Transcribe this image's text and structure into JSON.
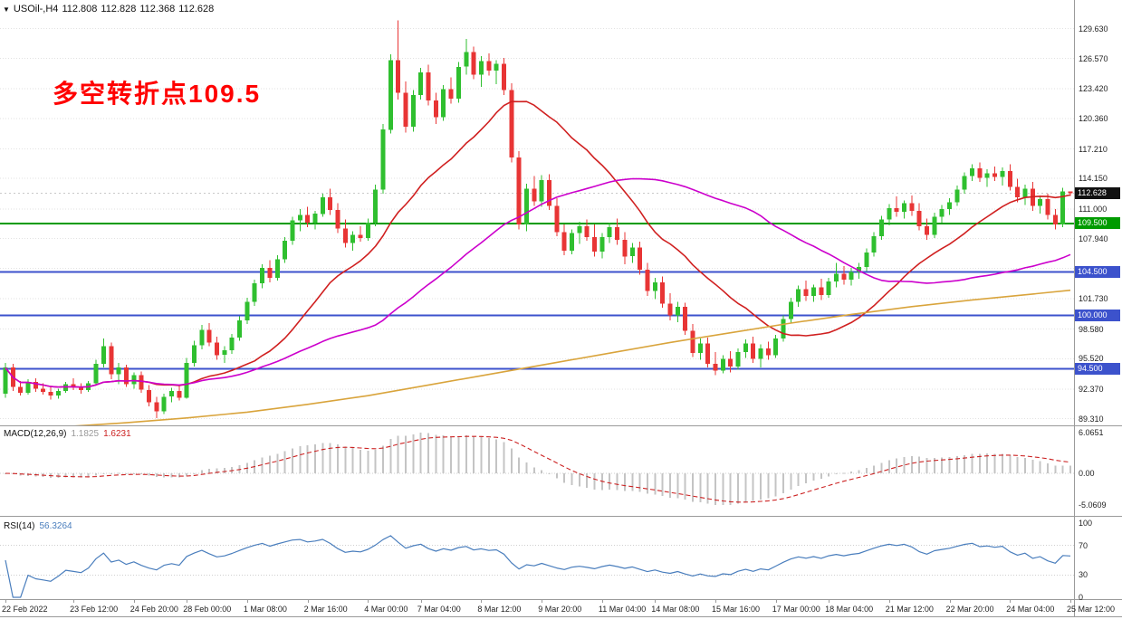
{
  "header": {
    "symbol_period": "USOil-,H4",
    "open": "112.808",
    "high": "112.828",
    "low": "112.368",
    "close": "112.628"
  },
  "annotation": {
    "text": "多空转折点109.5",
    "color": "#ff0000"
  },
  "colors": {
    "background": "#ffffff",
    "up": "#2fbf2f",
    "down": "#e83535",
    "grid": "#e2e2e2",
    "separator": "#9a9a9a",
    "tag_current_bg": "#111111",
    "macd_hist": "#c4c4c4",
    "macd_signal": "#cc2222",
    "rsi_line": "#4a7ebd"
  },
  "chart_data": {
    "type": "candlestick",
    "symbol": "USOil",
    "timeframe": "H4",
    "price_axis": {
      "view_max": 132.6,
      "view_min": 88.63,
      "ticks": [
        {
          "v": 129.63,
          "label": "129.630"
        },
        {
          "v": 126.57,
          "label": "126.570"
        },
        {
          "v": 123.42,
          "label": "123.420"
        },
        {
          "v": 120.36,
          "label": "120.360"
        },
        {
          "v": 117.21,
          "label": "117.210"
        },
        {
          "v": 114.15,
          "label": "114.150"
        },
        {
          "v": 111.0,
          "label": "111.000"
        },
        {
          "v": 107.94,
          "label": "107.940"
        },
        {
          "v": 101.73,
          "label": "101.730"
        },
        {
          "v": 98.58,
          "label": "98.580"
        },
        {
          "v": 95.52,
          "label": "95.520"
        },
        {
          "v": 92.37,
          "label": "92.370"
        },
        {
          "v": 89.31,
          "label": "89.310"
        }
      ],
      "grid_extra": [
        104.88
      ]
    },
    "current_price": {
      "value": 112.628,
      "label": "112.628"
    },
    "hlines": [
      {
        "price": 109.5,
        "label": "109.500",
        "color": "#009b00"
      },
      {
        "price": 104.5,
        "label": "104.500",
        "color": "#3c52cc"
      },
      {
        "price": 100.0,
        "label": "100.000",
        "color": "#3c52cc"
      },
      {
        "price": 94.5,
        "label": "94.500",
        "color": "#3c52cc"
      }
    ],
    "moving_averages": [
      {
        "name": "fast",
        "method": "sma",
        "period": 20,
        "color": "#d02020"
      },
      {
        "name": "medium",
        "method": "sma",
        "period": 50,
        "color": "#cc00cc"
      }
    ],
    "slow_ma_points": {
      "name": "slow",
      "color": "#d9a43c",
      "points": [
        [
          0,
          88.1
        ],
        [
          8,
          88.5
        ],
        [
          16,
          88.9
        ],
        [
          24,
          89.4
        ],
        [
          32,
          90.0
        ],
        [
          40,
          90.8
        ],
        [
          48,
          91.7
        ],
        [
          56,
          92.8
        ],
        [
          64,
          93.9
        ],
        [
          72,
          95.0
        ],
        [
          80,
          96.1
        ],
        [
          88,
          97.2
        ],
        [
          96,
          98.2
        ],
        [
          104,
          99.2
        ],
        [
          112,
          100.1
        ],
        [
          120,
          100.9
        ],
        [
          128,
          101.6
        ],
        [
          136,
          102.2
        ],
        [
          141,
          102.6
        ]
      ]
    },
    "time_labels": [
      [
        0,
        "22 Feb 2022"
      ],
      [
        9,
        "23 Feb 12:00"
      ],
      [
        17,
        "24 Feb 20:00"
      ],
      [
        24,
        "28 Feb 00:00"
      ],
      [
        32,
        "1 Mar 08:00"
      ],
      [
        40,
        "2 Mar 16:00"
      ],
      [
        48,
        "4 Mar 00:00"
      ],
      [
        55,
        "7 Mar 04:00"
      ],
      [
        63,
        "8 Mar 12:00"
      ],
      [
        71,
        "9 Mar 20:00"
      ],
      [
        79,
        "11 Mar 04:00"
      ],
      [
        86,
        "14 Mar 08:00"
      ],
      [
        94,
        "15 Mar 16:00"
      ],
      [
        102,
        "17 Mar 00:00"
      ],
      [
        109,
        "18 Mar 04:00"
      ],
      [
        117,
        "21 Mar 12:00"
      ],
      [
        125,
        "22 Mar 20:00"
      ],
      [
        133,
        "24 Mar 04:00"
      ],
      [
        141,
        "25 Mar 12:00"
      ]
    ],
    "candles": [
      [
        91.9,
        95.1,
        91.5,
        94.6
      ],
      [
        94.6,
        95.0,
        92.2,
        92.6
      ],
      [
        92.6,
        93.2,
        91.7,
        92.0
      ],
      [
        92.0,
        93.4,
        91.8,
        93.1
      ],
      [
        93.1,
        93.5,
        92.1,
        92.4
      ],
      [
        92.4,
        93.0,
        91.8,
        92.1
      ],
      [
        92.1,
        92.6,
        91.3,
        91.7
      ],
      [
        91.7,
        92.4,
        91.4,
        92.2
      ],
      [
        92.2,
        93.1,
        92.0,
        92.9
      ],
      [
        92.9,
        93.5,
        92.3,
        92.6
      ],
      [
        92.6,
        93.0,
        91.9,
        92.3
      ],
      [
        92.3,
        93.2,
        92.1,
        93.0
      ],
      [
        93.0,
        95.4,
        92.8,
        95.0
      ],
      [
        95.0,
        97.6,
        94.6,
        96.8
      ],
      [
        96.8,
        97.2,
        93.4,
        93.9
      ],
      [
        93.9,
        95.1,
        92.9,
        94.6
      ],
      [
        94.6,
        94.9,
        92.6,
        92.9
      ],
      [
        92.9,
        94.1,
        92.4,
        93.8
      ],
      [
        93.8,
        94.2,
        92.0,
        92.3
      ],
      [
        92.3,
        92.8,
        90.6,
        91.0
      ],
      [
        91.0,
        91.6,
        89.4,
        90.1
      ],
      [
        90.1,
        91.9,
        89.8,
        91.6
      ],
      [
        91.6,
        92.5,
        91.0,
        92.2
      ],
      [
        92.2,
        92.7,
        91.2,
        91.5
      ],
      [
        91.5,
        95.6,
        91.4,
        95.1
      ],
      [
        95.1,
        97.4,
        94.7,
        96.9
      ],
      [
        96.9,
        99.0,
        96.5,
        98.5
      ],
      [
        98.5,
        99.2,
        96.8,
        97.2
      ],
      [
        97.2,
        97.8,
        95.4,
        95.9
      ],
      [
        95.9,
        96.8,
        95.1,
        96.4
      ],
      [
        96.4,
        98.1,
        96.0,
        97.7
      ],
      [
        97.7,
        99.9,
        97.4,
        99.5
      ],
      [
        99.5,
        101.8,
        99.1,
        101.4
      ],
      [
        101.4,
        103.7,
        101.0,
        103.3
      ],
      [
        103.3,
        105.3,
        102.8,
        104.9
      ],
      [
        104.9,
        105.7,
        103.4,
        103.9
      ],
      [
        103.9,
        106.2,
        103.6,
        105.8
      ],
      [
        105.8,
        108.1,
        105.4,
        107.7
      ],
      [
        107.7,
        110.2,
        107.3,
        109.8
      ],
      [
        109.8,
        111.0,
        108.7,
        110.4
      ],
      [
        110.4,
        111.2,
        109.1,
        109.6
      ],
      [
        109.6,
        110.8,
        108.9,
        110.5
      ],
      [
        110.5,
        112.6,
        110.2,
        112.2
      ],
      [
        112.2,
        113.1,
        110.4,
        110.9
      ],
      [
        110.9,
        111.6,
        108.5,
        109.0
      ],
      [
        109.0,
        109.9,
        107.0,
        107.5
      ],
      [
        107.5,
        108.7,
        106.7,
        108.3
      ],
      [
        108.3,
        109.2,
        107.6,
        108.0
      ],
      [
        108.0,
        110.0,
        107.7,
        109.6
      ],
      [
        109.6,
        113.5,
        109.2,
        113.0
      ],
      [
        113.0,
        119.8,
        112.6,
        119.2
      ],
      [
        119.2,
        127.0,
        118.8,
        126.4
      ],
      [
        126.4,
        130.5,
        122.3,
        123.0
      ],
      [
        123.0,
        124.2,
        118.9,
        119.5
      ],
      [
        119.5,
        123.3,
        119.0,
        122.8
      ],
      [
        122.8,
        125.6,
        122.3,
        125.1
      ],
      [
        125.1,
        125.9,
        121.7,
        122.2
      ],
      [
        122.2,
        123.0,
        119.8,
        120.5
      ],
      [
        120.5,
        123.8,
        120.1,
        123.4
      ],
      [
        123.4,
        124.6,
        121.9,
        122.4
      ],
      [
        122.4,
        126.2,
        122.0,
        125.7
      ],
      [
        125.7,
        128.6,
        124.9,
        127.2
      ],
      [
        127.2,
        127.8,
        124.4,
        124.9
      ],
      [
        124.9,
        126.8,
        123.6,
        126.3
      ],
      [
        126.3,
        127.1,
        124.8,
        125.3
      ],
      [
        125.3,
        126.4,
        123.9,
        126.0
      ],
      [
        126.0,
        126.6,
        122.8,
        123.3
      ],
      [
        123.3,
        124.0,
        115.8,
        116.3
      ],
      [
        116.3,
        117.0,
        108.9,
        109.4
      ],
      [
        109.4,
        113.6,
        108.7,
        113.1
      ],
      [
        113.1,
        114.4,
        111.3,
        111.8
      ],
      [
        111.8,
        114.5,
        111.2,
        114.0
      ],
      [
        114.0,
        114.6,
        110.9,
        111.3
      ],
      [
        111.3,
        112.1,
        108.2,
        108.6
      ],
      [
        108.6,
        109.4,
        106.2,
        106.7
      ],
      [
        106.7,
        108.9,
        106.3,
        108.5
      ],
      [
        108.5,
        109.7,
        107.4,
        109.2
      ],
      [
        109.2,
        109.9,
        107.7,
        108.1
      ],
      [
        108.1,
        109.4,
        106.1,
        106.6
      ],
      [
        106.6,
        108.5,
        105.9,
        108.1
      ],
      [
        108.1,
        109.6,
        107.5,
        109.1
      ],
      [
        109.1,
        110.0,
        107.3,
        107.8
      ],
      [
        107.8,
        108.6,
        105.3,
        106.1
      ],
      [
        106.1,
        107.5,
        105.4,
        107.0
      ],
      [
        107.0,
        107.6,
        104.2,
        104.7
      ],
      [
        104.7,
        105.4,
        102.0,
        102.5
      ],
      [
        102.5,
        103.9,
        101.7,
        103.4
      ],
      [
        103.4,
        104.0,
        100.8,
        101.2
      ],
      [
        101.2,
        102.3,
        99.5,
        100.0
      ],
      [
        100.0,
        101.4,
        99.3,
        100.9
      ],
      [
        100.9,
        101.3,
        98.0,
        98.4
      ],
      [
        98.4,
        99.1,
        95.7,
        96.1
      ],
      [
        96.1,
        97.6,
        95.4,
        97.1
      ],
      [
        97.1,
        97.7,
        94.6,
        95.0
      ],
      [
        95.0,
        96.2,
        93.8,
        94.3
      ],
      [
        94.3,
        95.9,
        94.0,
        95.5
      ],
      [
        95.5,
        96.3,
        94.1,
        94.7
      ],
      [
        94.7,
        96.6,
        94.4,
        96.2
      ],
      [
        96.2,
        97.5,
        95.6,
        97.1
      ],
      [
        97.1,
        97.8,
        95.1,
        95.5
      ],
      [
        95.5,
        97.0,
        94.6,
        96.6
      ],
      [
        96.6,
        97.3,
        95.4,
        95.9
      ],
      [
        95.9,
        98.0,
        95.6,
        97.6
      ],
      [
        97.6,
        100.0,
        97.3,
        99.6
      ],
      [
        99.6,
        101.8,
        99.2,
        101.4
      ],
      [
        101.4,
        103.1,
        100.9,
        102.7
      ],
      [
        102.7,
        103.6,
        101.5,
        102.0
      ],
      [
        102.0,
        103.2,
        101.4,
        102.9
      ],
      [
        102.9,
        103.8,
        101.6,
        102.1
      ],
      [
        102.1,
        103.9,
        101.8,
        103.5
      ],
      [
        103.5,
        105.4,
        102.9,
        104.3
      ],
      [
        104.3,
        105.1,
        103.2,
        103.7
      ],
      [
        103.7,
        104.9,
        103.1,
        104.5
      ],
      [
        104.5,
        105.4,
        103.8,
        105.0
      ],
      [
        105.0,
        106.9,
        104.6,
        106.5
      ],
      [
        106.5,
        108.6,
        106.1,
        108.2
      ],
      [
        108.2,
        110.3,
        107.8,
        109.9
      ],
      [
        109.9,
        111.5,
        109.3,
        111.1
      ],
      [
        111.1,
        112.3,
        110.2,
        110.7
      ],
      [
        110.7,
        111.9,
        110.0,
        111.6
      ],
      [
        111.6,
        112.4,
        110.3,
        110.8
      ],
      [
        110.8,
        111.6,
        108.8,
        109.2
      ],
      [
        109.2,
        110.0,
        107.8,
        108.3
      ],
      [
        108.3,
        110.6,
        108.0,
        110.2
      ],
      [
        110.2,
        111.4,
        109.6,
        111.0
      ],
      [
        111.0,
        112.1,
        110.4,
        111.7
      ],
      [
        111.7,
        113.4,
        111.3,
        113.0
      ],
      [
        113.0,
        114.8,
        112.6,
        114.4
      ],
      [
        114.4,
        115.6,
        113.9,
        115.2
      ],
      [
        115.2,
        115.8,
        113.8,
        114.2
      ],
      [
        114.2,
        115.1,
        113.3,
        114.7
      ],
      [
        114.7,
        115.4,
        113.9,
        114.3
      ],
      [
        114.3,
        115.3,
        113.4,
        114.9
      ],
      [
        114.9,
        115.6,
        112.9,
        113.3
      ],
      [
        113.3,
        114.1,
        111.7,
        112.2
      ],
      [
        112.2,
        113.5,
        111.4,
        113.1
      ],
      [
        113.1,
        113.8,
        110.8,
        111.3
      ],
      [
        111.3,
        112.4,
        110.5,
        112.0
      ],
      [
        112.0,
        112.6,
        109.9,
        110.4
      ],
      [
        110.4,
        111.0,
        108.9,
        109.4
      ],
      [
        109.4,
        113.2,
        109.1,
        112.81
      ],
      [
        112.808,
        112.828,
        112.368,
        112.628
      ]
    ],
    "macd": {
      "label": "MACD(12,26,9)",
      "value_main": "1.1825",
      "value_signal": "1.6231",
      "fast": 12,
      "slow": 26,
      "signal": 9,
      "axis": [
        "6.0651",
        "0.00",
        "-5.0609"
      ]
    },
    "rsi": {
      "label": "RSI(14)",
      "value": "56.3264",
      "period": 14,
      "axis": [
        "100",
        "70",
        "30",
        "0"
      ],
      "levels": [
        70,
        30
      ]
    }
  }
}
